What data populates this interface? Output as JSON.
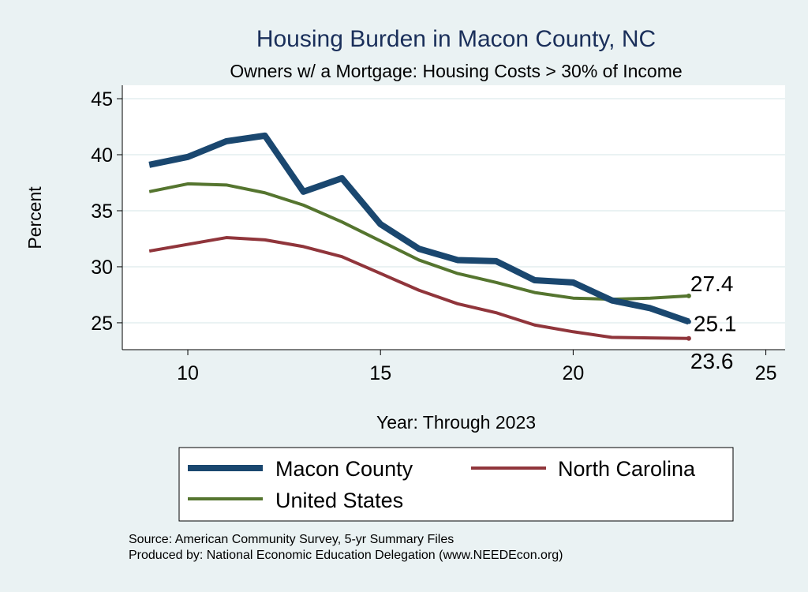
{
  "chart_data": {
    "type": "line",
    "title": "Housing Burden in Macon County, NC",
    "subtitle": "Owners w/ a Mortgage: Housing Costs > 30% of Income",
    "xlabel": "Year: Through 2023",
    "ylabel": "Percent",
    "xlim": [
      8.3,
      25.5
    ],
    "ylim": [
      22.6,
      46.2
    ],
    "xticks": [
      10,
      15,
      20,
      25
    ],
    "yticks": [
      25,
      30,
      35,
      40,
      45
    ],
    "grid": true,
    "legend_position": "bottom",
    "x": [
      9,
      10,
      11,
      12,
      13,
      14,
      15,
      16,
      17,
      18,
      19,
      20,
      21,
      22,
      23
    ],
    "series": [
      {
        "name": "Macon County",
        "color": "#1a476f",
        "width": 8,
        "values": [
          39.1,
          39.8,
          41.2,
          41.7,
          36.7,
          37.9,
          33.8,
          31.6,
          30.6,
          30.5,
          28.8,
          28.6,
          27.0,
          26.3,
          25.1
        ],
        "end_label": "25.1"
      },
      {
        "name": "North Carolina",
        "color": "#90353b",
        "width": 4,
        "values": [
          31.4,
          32.0,
          32.6,
          32.4,
          31.8,
          30.9,
          29.4,
          27.9,
          26.7,
          25.9,
          24.8,
          24.2,
          23.7,
          23.65,
          23.6
        ],
        "end_label": "23.6"
      },
      {
        "name": "United States",
        "color": "#55752f",
        "width": 4,
        "values": [
          36.7,
          37.4,
          37.3,
          36.6,
          35.5,
          34.0,
          32.3,
          30.6,
          29.4,
          28.6,
          27.7,
          27.2,
          27.1,
          27.2,
          27.4
        ],
        "end_label": "27.4"
      }
    ],
    "notes": [
      "Source: American Community Survey, 5-yr Summary Files",
      "Produced by: National Economic Education Delegation (www.NEEDEcon.org)"
    ]
  }
}
